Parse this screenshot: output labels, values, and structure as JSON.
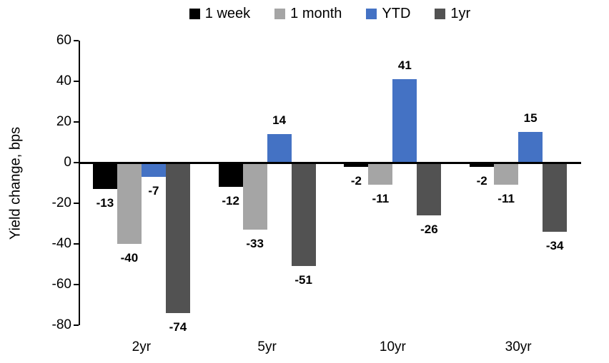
{
  "chart_data": {
    "type": "bar",
    "title": "",
    "ylabel": "Yield change, bps",
    "xlabel": "",
    "categories": [
      "2yr",
      "5yr",
      "10yr",
      "30yr"
    ],
    "series": [
      {
        "name": "1 week",
        "color": "#000000",
        "values": [
          -13,
          -12,
          -2,
          -2
        ]
      },
      {
        "name": "1 month",
        "color": "#a5a5a5",
        "values": [
          -40,
          -33,
          -11,
          -11
        ]
      },
      {
        "name": "YTD",
        "color": "#4472c4",
        "values": [
          -7,
          14,
          41,
          15
        ]
      },
      {
        "name": "1yr",
        "color": "#525252",
        "values": [
          -74,
          -51,
          -26,
          -34
        ]
      }
    ],
    "ylim": [
      -80,
      60
    ],
    "yticks": [
      60,
      40,
      20,
      0,
      -20,
      -40,
      -60,
      -80
    ],
    "grid": false,
    "legend_position": "top",
    "data_labels": "outside-end",
    "background": "#ffffff",
    "axis_color": "#000000"
  }
}
